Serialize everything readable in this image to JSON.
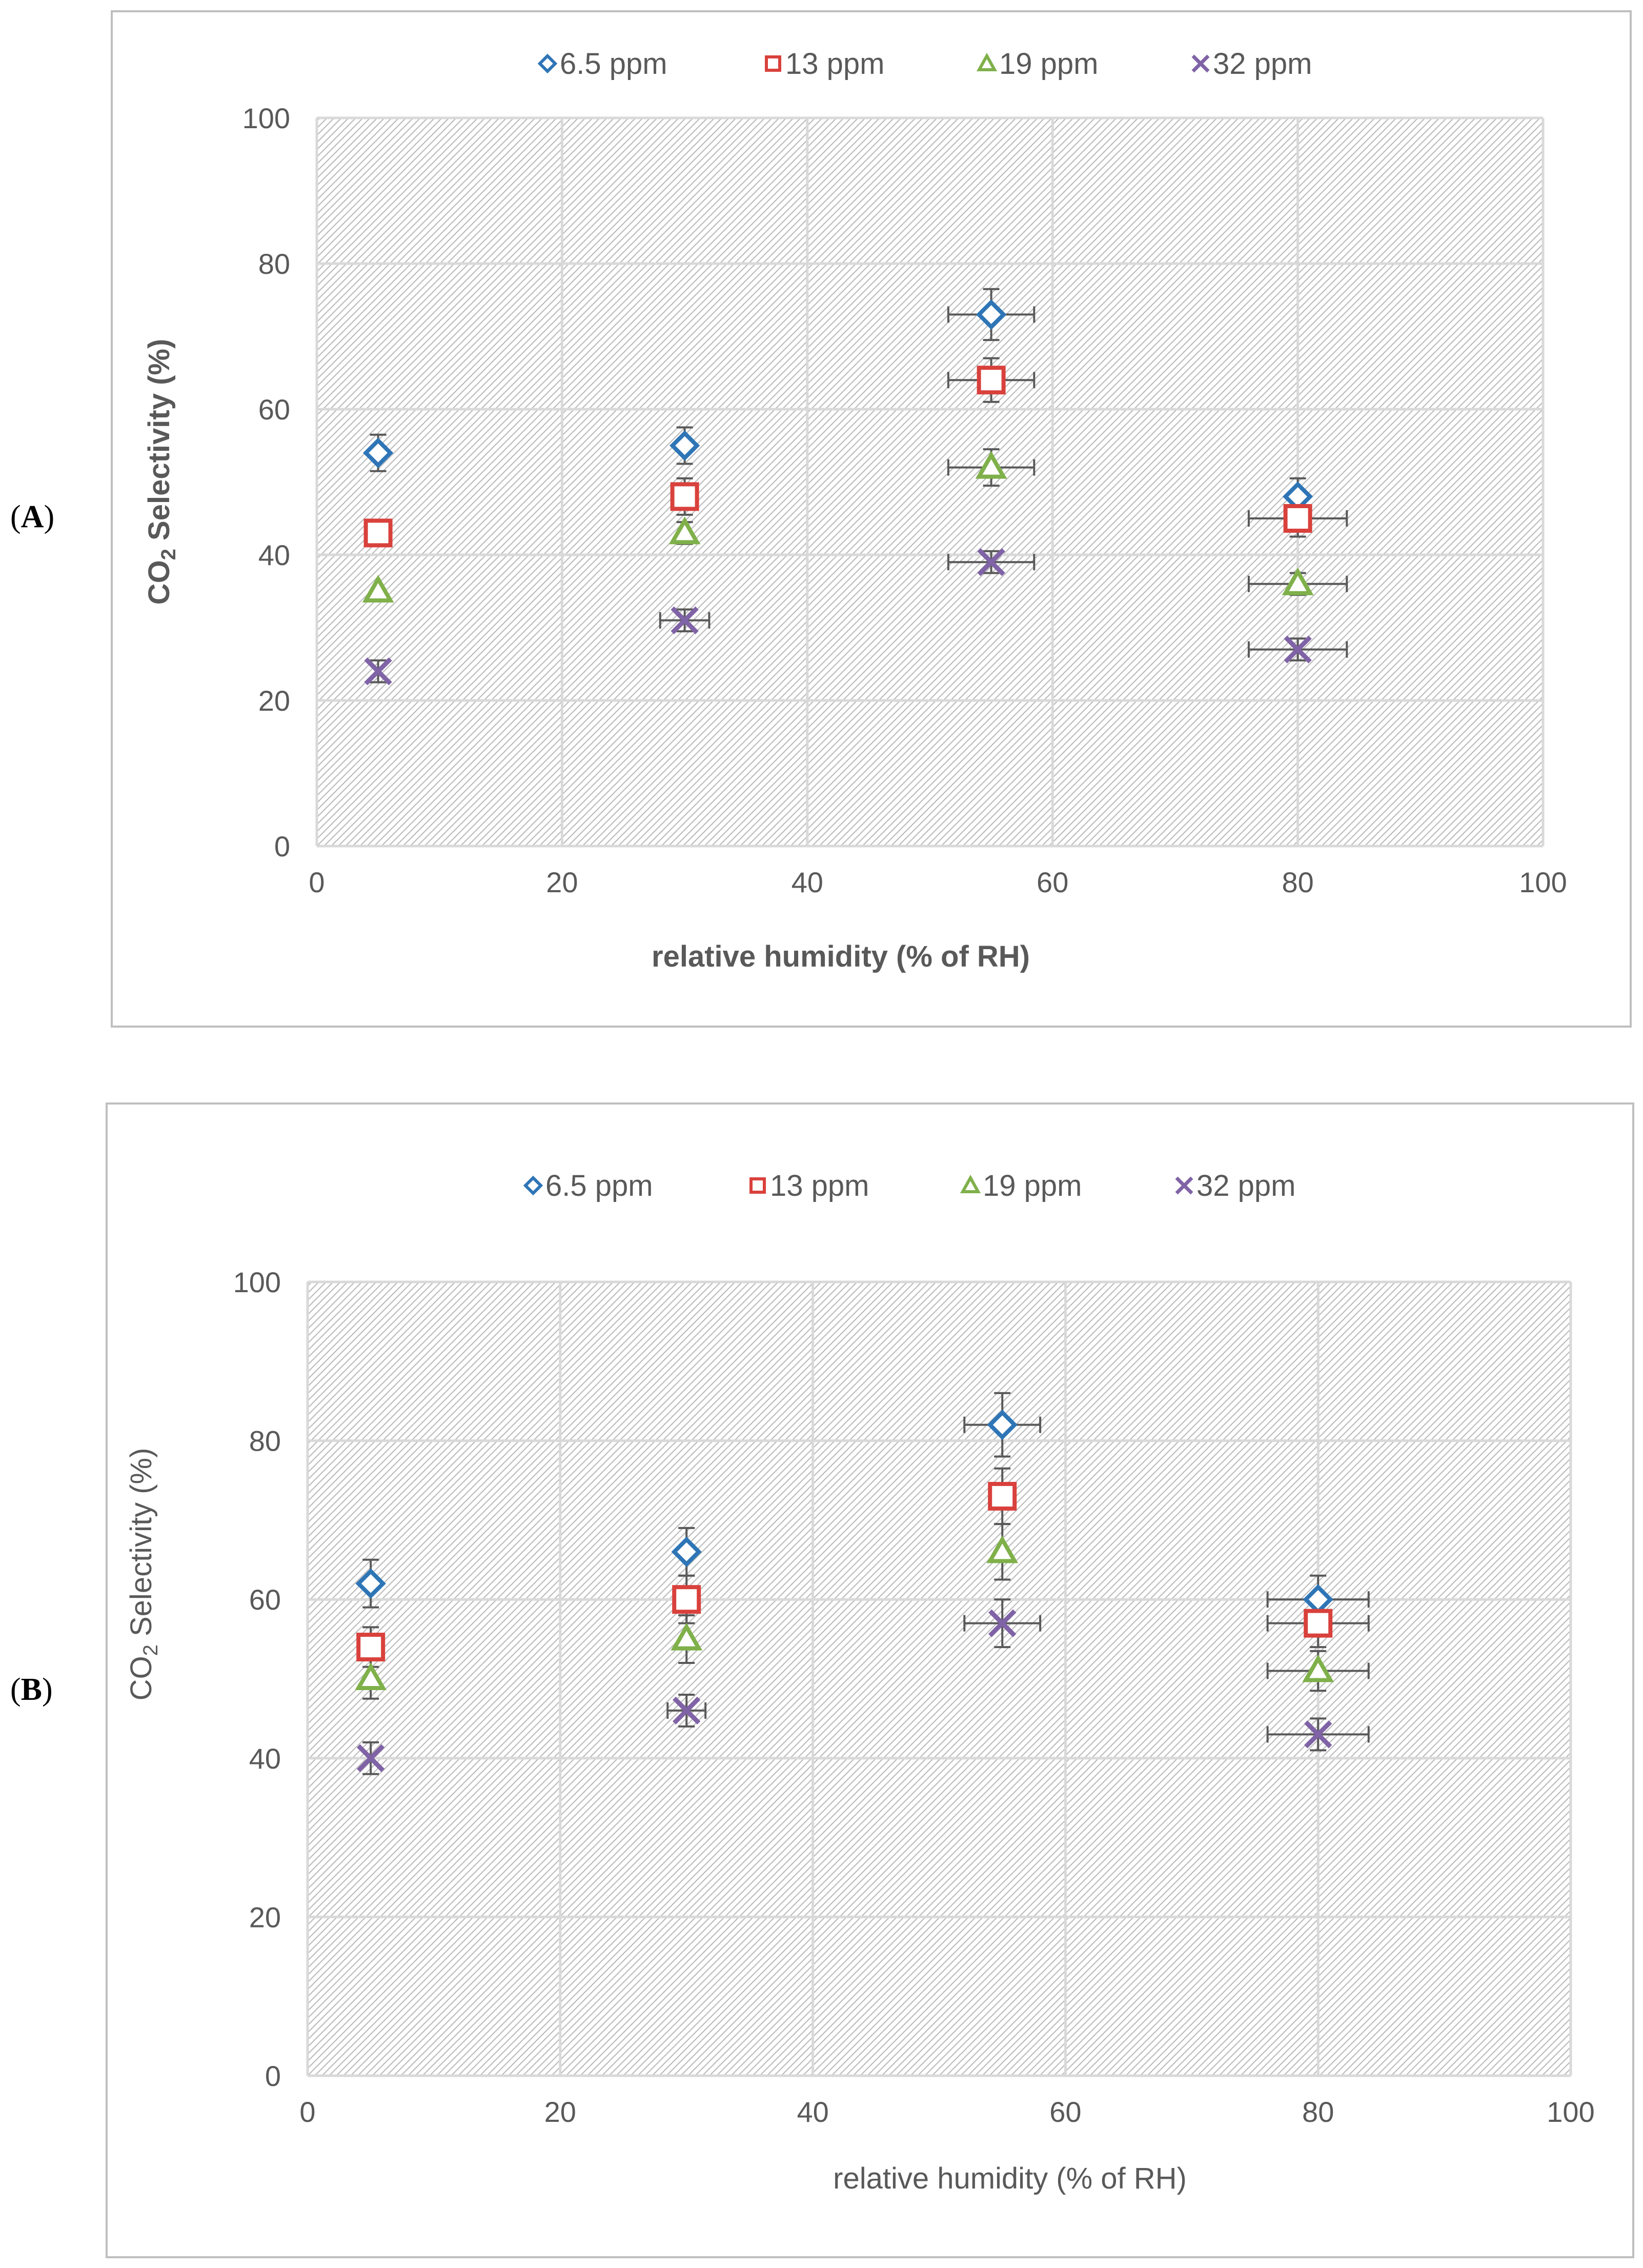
{
  "colors": {
    "series_6_5": "#2E75B6",
    "series_13": "#D9413C",
    "series_19": "#7FB04A",
    "series_32": "#8063A6",
    "grid": "#d9d9d9",
    "frame": "#bfbfbf",
    "error_bar": "#595959"
  },
  "chart_data": [
    {
      "type": "scatter",
      "panel_label_open": "(",
      "panel_label_letter": "A",
      "panel_label_close": ")",
      "xlabel": "relative humidity  (% of RH)",
      "ylabel_prefix": "CO",
      "ylabel_sub": "2",
      "ylabel_suffix": " Selectivity  (%)",
      "xlim": [
        0,
        100
      ],
      "ylim": [
        0,
        100
      ],
      "x_ticks": [
        "0",
        "20",
        "40",
        "60",
        "80",
        "100"
      ],
      "y_ticks": [
        "0",
        "20",
        "40",
        "60",
        "80",
        "100"
      ],
      "legend_position": "top",
      "legend": [
        "6.5 ppm",
        "13 ppm",
        "19 ppm",
        "32 ppm"
      ],
      "x": [
        5,
        30,
        55,
        80
      ],
      "series": [
        {
          "name": "6.5 ppm",
          "marker": "diamond",
          "values": [
            54,
            55,
            73,
            48
          ],
          "y_err": [
            2.5,
            2.5,
            3.5,
            2.5
          ],
          "x_err": [
            0,
            0,
            3.5,
            0
          ]
        },
        {
          "name": "13 ppm",
          "marker": "square",
          "values": [
            43,
            48,
            64,
            45
          ],
          "y_err": [
            0,
            2.5,
            3,
            2.5
          ],
          "x_err": [
            0,
            0,
            3.5,
            4
          ]
        },
        {
          "name": "19 ppm",
          "marker": "triangle",
          "values": [
            35,
            43,
            52,
            36
          ],
          "y_err": [
            0,
            1.5,
            2.5,
            1.5
          ],
          "x_err": [
            0,
            0,
            3.5,
            4
          ]
        },
        {
          "name": "32 ppm",
          "marker": "x",
          "values": [
            24,
            31,
            39,
            27
          ],
          "y_err": [
            1.5,
            1.5,
            1.5,
            1.5
          ],
          "x_err": [
            0,
            2,
            3.5,
            4
          ]
        }
      ]
    },
    {
      "type": "scatter",
      "panel_label_open": "(",
      "panel_label_letter": "B",
      "panel_label_close": ")",
      "xlabel": "relative  humidity  (% of RH)",
      "ylabel_prefix": "CO",
      "ylabel_sub": "2",
      "ylabel_suffix": " Selectivity  (%)",
      "xlim": [
        0,
        100
      ],
      "ylim": [
        0,
        100
      ],
      "x_ticks": [
        "0",
        "20",
        "40",
        "60",
        "80",
        "100"
      ],
      "y_ticks": [
        "0",
        "20",
        "40",
        "60",
        "80",
        "100"
      ],
      "legend_position": "top",
      "legend": [
        "6.5 ppm",
        "13 ppm",
        "19 ppm",
        "32 ppm"
      ],
      "x": [
        5,
        30,
        55,
        80
      ],
      "series": [
        {
          "name": "6.5 ppm",
          "marker": "diamond",
          "values": [
            62,
            66,
            82,
            60
          ],
          "y_err": [
            3,
            3,
            4,
            3
          ],
          "x_err": [
            0,
            0,
            3,
            4
          ]
        },
        {
          "name": "13 ppm",
          "marker": "square",
          "values": [
            54,
            60,
            73,
            57
          ],
          "y_err": [
            2.5,
            3,
            3.5,
            3
          ],
          "x_err": [
            0,
            0,
            0,
            4
          ]
        },
        {
          "name": "19 ppm",
          "marker": "triangle",
          "values": [
            50,
            55,
            66,
            51
          ],
          "y_err": [
            2.5,
            3,
            3.5,
            2.5
          ],
          "x_err": [
            0,
            0,
            0,
            4
          ]
        },
        {
          "name": "32 ppm",
          "marker": "x",
          "values": [
            40,
            46,
            57,
            43
          ],
          "y_err": [
            2,
            2,
            3,
            2
          ],
          "x_err": [
            0,
            1.5,
            3,
            4
          ]
        }
      ]
    }
  ]
}
